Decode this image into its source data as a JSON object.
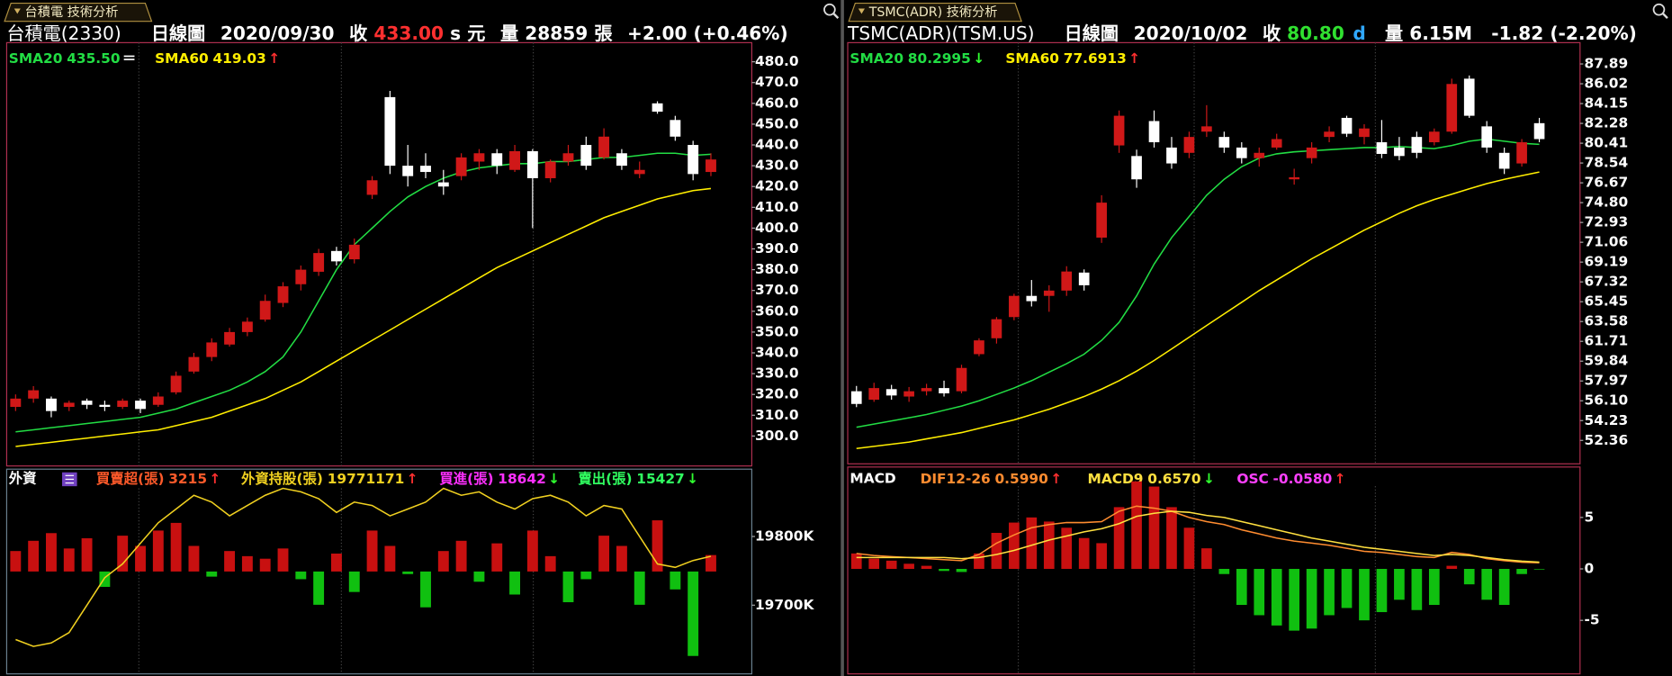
{
  "chart_data": [
    {
      "tab": "台積電 技術分析",
      "header": [
        {
          "text": "台積電(2330)",
          "color": "#ffffff"
        },
        {
          "text": "日線圖",
          "color": "#ffffff"
        },
        {
          "text": "2020/09/30",
          "color": "#ffffff"
        },
        {
          "text": "收",
          "color": "#ffffff"
        },
        {
          "text": "433.00",
          "color": "#ff3030"
        },
        {
          "text": "s",
          "color": "#ffffff"
        },
        {
          "text": "元",
          "color": "#ffffff"
        },
        {
          "text": "量",
          "color": "#ffffff"
        },
        {
          "text": "28859",
          "color": "#ffffff"
        },
        {
          "text": "張",
          "color": "#ffffff"
        },
        {
          "text": "+2.00 (+0.46%)",
          "color": "#ffffff"
        }
      ],
      "main": {
        "type": "candlestick",
        "ylim": [
          285.6,
          489.2
        ],
        "up_color": "#d01818",
        "down_color": "#ffffff",
        "yticks": [
          {
            "value": 480,
            "label": "480.0"
          },
          {
            "value": 470,
            "label": "470.0"
          },
          {
            "value": 460,
            "label": "460.0"
          },
          {
            "value": 450,
            "label": "450.0"
          },
          {
            "value": 440,
            "label": "440.0"
          },
          {
            "value": 430,
            "label": "430.0"
          },
          {
            "value": 420,
            "label": "420.0"
          },
          {
            "value": 410,
            "label": "410.0"
          },
          {
            "value": 400,
            "label": "400.0"
          },
          {
            "value": 390,
            "label": "390.0"
          },
          {
            "value": 380,
            "label": "380.0"
          },
          {
            "value": 370,
            "label": "370.0"
          },
          {
            "value": 360,
            "label": "360.0"
          },
          {
            "value": 350,
            "label": "350.0"
          },
          {
            "value": 340,
            "label": "340.0"
          },
          {
            "value": 330,
            "label": "330.0"
          },
          {
            "value": 320,
            "label": "320.0"
          },
          {
            "value": 310,
            "label": "310.0"
          },
          {
            "value": 300,
            "label": "300.0"
          }
        ],
        "open": [
          314,
          318,
          318,
          314,
          317,
          315,
          314,
          317,
          315,
          321,
          331,
          338,
          344,
          350,
          356,
          364,
          373,
          379,
          389,
          385,
          416,
          463,
          430,
          430,
          422,
          425,
          432,
          436,
          428,
          437,
          424,
          432,
          440,
          434,
          436,
          426,
          460,
          452,
          440,
          427
        ],
        "high": [
          320,
          324,
          319,
          317,
          318,
          317,
          318,
          318,
          321,
          331,
          340,
          347,
          352,
          357,
          368,
          374,
          382,
          390,
          391,
          395,
          425,
          466,
          440,
          436,
          428,
          436,
          438,
          438,
          440,
          438,
          433,
          440,
          444,
          448,
          438,
          432,
          461,
          454,
          442,
          436
        ],
        "low": [
          312,
          316,
          309,
          312,
          313,
          312,
          313,
          311,
          314,
          320,
          330,
          336,
          343,
          348,
          355,
          362,
          370,
          377,
          382,
          383,
          414,
          426,
          420,
          424,
          416,
          423,
          428,
          426,
          427,
          400,
          422,
          430,
          428,
          433,
          428,
          424,
          455,
          442,
          423,
          425
        ],
        "close": [
          318,
          322,
          312,
          316,
          315,
          314,
          317,
          313,
          319,
          329,
          338,
          345,
          350,
          355,
          365,
          372,
          380,
          388,
          384,
          392,
          423,
          430,
          425,
          427,
          420,
          434,
          436,
          430,
          437,
          424,
          432,
          436,
          430,
          444,
          430,
          428,
          456,
          444,
          426,
          433
        ],
        "series": [
          {
            "name": "SMA20",
            "last": "435.50",
            "arrow": "＝",
            "color": "#22dd44",
            "values": [
              302,
              303,
              304,
              305,
              306,
              307,
              308,
              309,
              311,
              313,
              316,
              319,
              322,
              326,
              331,
              338,
              350,
              365,
              380,
              392,
              400,
              408,
              415,
              420,
              424,
              427,
              429,
              430,
              431,
              431,
              432,
              432,
              433,
              434,
              434,
              435,
              436,
              436,
              435,
              435.5
            ]
          },
          {
            "name": "SMA60",
            "last": "419.03",
            "arrow": "↑",
            "color": "#ffee00",
            "values": [
              295,
              296,
              297,
              298,
              299,
              300,
              301,
              302,
              303,
              305,
              307,
              309,
              312,
              315,
              318,
              322,
              326,
              331,
              336,
              341,
              346,
              351,
              356,
              361,
              366,
              371,
              376,
              381,
              385,
              389,
              393,
              397,
              401,
              405,
              408,
              411,
              414,
              416,
              418,
              419.03
            ]
          }
        ]
      },
      "sub": {
        "type": "bar-line",
        "title": "外資",
        "ylim": [
          19600000,
          19898000
        ],
        "yticks": [
          {
            "value": 19800000,
            "label": "19800K"
          },
          {
            "value": 19700000,
            "label": "19700K"
          }
        ],
        "series": [
          {
            "name": "買賣超(張)",
            "last": "3215",
            "arrow": "↑",
            "color": "#ff5a2a",
            "kind": "bar",
            "up_color": "#c81010",
            "down_color": "#10c010",
            "ylim": [
              -20000,
              20000
            ],
            "values": [
              4000,
              6000,
              7500,
              4500,
              6500,
              -3000,
              7000,
              5000,
              8000,
              9500,
              5000,
              -1000,
              4000,
              3000,
              2500,
              4500,
              -1500,
              -6500,
              3500,
              -4000,
              8000,
              5000,
              -500,
              -7000,
              4000,
              6000,
              -2000,
              5500,
              -4500,
              8000,
              3000,
              -6000,
              -1500,
              7000,
              5000,
              -6500,
              10000,
              -3500,
              -16500,
              3215
            ]
          },
          {
            "name": "外資持股(張)",
            "last": "19771171",
            "arrow": "↑",
            "color": "#f0d020",
            "kind": "line",
            "values": [
              19650000,
              19640000,
              19645000,
              19660000,
              19700000,
              19740000,
              19760000,
              19790000,
              19820000,
              19840000,
              19860000,
              19850000,
              19830000,
              19845000,
              19860000,
              19870000,
              19865000,
              19855000,
              19835000,
              19850000,
              19845000,
              19830000,
              19840000,
              19850000,
              19870000,
              19860000,
              19865000,
              19850000,
              19840000,
              19855000,
              19860000,
              19850000,
              19830000,
              19845000,
              19840000,
              19800000,
              19760000,
              19755000,
              19765000,
              19771171
            ]
          },
          {
            "name": "買進(張)",
            "last": "18642",
            "arrow": "↓",
            "color": "#ff30ff"
          },
          {
            "name": "賣出(張)",
            "last": "15427",
            "arrow": "↓",
            "color": "#30ff60"
          }
        ]
      }
    },
    {
      "tab": "TSMC(ADR) 技術分析",
      "header": [
        {
          "text": "TSMC(ADR)(TSM.US)",
          "color": "#ffffff"
        },
        {
          "text": "日線圖",
          "color": "#ffffff"
        },
        {
          "text": "2020/10/02",
          "color": "#ffffff"
        },
        {
          "text": "收",
          "color": "#ffffff"
        },
        {
          "text": "80.80",
          "color": "#30e030"
        },
        {
          "text": "d",
          "color": "#30a8ff"
        },
        {
          "text": "量",
          "color": "#ffffff"
        },
        {
          "text": "6.15M",
          "color": "#ffffff"
        },
        {
          "text": "-1.82 (-2.20%)",
          "color": "#ffffff"
        }
      ],
      "main": {
        "type": "candlestick",
        "ylim": [
          50.15,
          89.9
        ],
        "up_color": "#d01818",
        "down_color": "#ffffff",
        "yticks": [
          87.89,
          86.02,
          84.15,
          82.28,
          80.41,
          78.54,
          76.67,
          {
            "value": 74.8,
            "label": "74.80"
          },
          72.93,
          71.06,
          69.19,
          67.32,
          65.45,
          63.58,
          61.71,
          59.84,
          57.97,
          {
            "value": 56.1,
            "label": "56.10"
          },
          54.23,
          52.36
        ],
        "open": [
          57,
          56.2,
          57.2,
          56.5,
          57,
          57.3,
          57,
          60.5,
          62,
          64,
          66,
          66,
          66.5,
          68.2,
          71.5,
          80.2,
          79.2,
          82.5,
          80,
          79.5,
          81.5,
          81,
          80,
          79,
          80,
          77,
          79,
          81,
          82.8,
          81,
          80.5,
          80,
          81,
          80.5,
          81.5,
          86.5,
          82,
          79.5,
          78.5,
          82.3
        ],
        "high": [
          57.5,
          57.8,
          57.6,
          57.4,
          57.7,
          58,
          59.5,
          62,
          64,
          66.2,
          67.5,
          67,
          68.8,
          68.5,
          75.5,
          83.5,
          79.8,
          83.5,
          81,
          81.5,
          84,
          81.5,
          80.5,
          80,
          81.3,
          78,
          80.5,
          82,
          83,
          82.2,
          82.6,
          81,
          81.5,
          81.8,
          86.5,
          86.8,
          82.5,
          80,
          80.8,
          82.8
        ],
        "low": [
          55.5,
          56,
          56.2,
          56,
          56.6,
          56.5,
          56.8,
          60.3,
          61.5,
          63.7,
          65,
          64.5,
          66,
          66.5,
          71,
          79.5,
          76.2,
          80,
          78,
          79,
          81,
          79.5,
          78.5,
          78.2,
          79.8,
          76.5,
          78.5,
          80.5,
          81,
          80.3,
          79,
          78.8,
          79,
          80.2,
          81.3,
          82.8,
          79.5,
          77.5,
          78.2,
          80.5
        ],
        "close": [
          55.8,
          57.3,
          56.6,
          57,
          57.3,
          56.8,
          59.2,
          61.8,
          63.8,
          66,
          65.5,
          66.5,
          68.3,
          67,
          74.8,
          83,
          77,
          80.5,
          78.5,
          81,
          82,
          80,
          79,
          79.5,
          80.8,
          77.2,
          80,
          81.5,
          81.3,
          81.8,
          79.4,
          79.2,
          79.5,
          81.5,
          86,
          83,
          80,
          78,
          80.5,
          80.8
        ],
        "series": [
          {
            "name": "SMA20",
            "last": "80.2995",
            "arrow": "↓",
            "color": "#22dd44",
            "values": [
              53.6,
              53.9,
              54.2,
              54.5,
              54.8,
              55.2,
              55.6,
              56.1,
              56.7,
              57.3,
              58,
              58.8,
              59.6,
              60.5,
              61.8,
              63.5,
              66,
              69,
              71.5,
              73.5,
              75.5,
              77,
              78.2,
              79,
              79.4,
              79.6,
              79.7,
              79.8,
              79.9,
              80,
              80,
              80.1,
              80,
              79.9,
              80.2,
              80.6,
              80.8,
              80.6,
              80.4,
              80.2995
            ]
          },
          {
            "name": "SMA60",
            "last": "77.6913",
            "arrow": "↑",
            "color": "#ffee00",
            "values": [
              51.6,
              51.8,
              52,
              52.2,
              52.5,
              52.8,
              53.1,
              53.5,
              53.9,
              54.3,
              54.8,
              55.3,
              55.9,
              56.5,
              57.2,
              58,
              58.9,
              59.9,
              61,
              62.1,
              63.2,
              64.3,
              65.4,
              66.5,
              67.5,
              68.5,
              69.5,
              70.4,
              71.3,
              72.2,
              73,
              73.8,
              74.5,
              75.1,
              75.6,
              76.1,
              76.6,
              77,
              77.35,
              77.6913
            ]
          }
        ]
      },
      "sub": {
        "type": "bar-line",
        "title": "MACD",
        "ylim": [
          -10.2,
          9.9
        ],
        "yticks": [
          5,
          0,
          -5
        ],
        "series": [
          {
            "name": "DIF12-26",
            "last": "0.5990",
            "arrow": "↑",
            "color": "#ff8c30",
            "kind": "line",
            "values": [
              1.5,
              1.3,
              1.2,
              1.1,
              1.0,
              0.9,
              0.8,
              1.4,
              2.5,
              3.3,
              4,
              4.3,
              4.5,
              4.5,
              4.6,
              5.6,
              6.1,
              5.9,
              5.6,
              5.0,
              4.6,
              4.3,
              3.8,
              3.4,
              3,
              2.7,
              2.5,
              2.3,
              2.0,
              1.7,
              1.6,
              1.4,
              1.2,
              1.1,
              1.6,
              1.4,
              1.0,
              0.8,
              0.65,
              0.599
            ]
          },
          {
            "name": "MACD9",
            "last": "0.6570",
            "arrow": "↓",
            "color": "#ffe040",
            "kind": "line",
            "values": [
              1.1,
              1.1,
              1.1,
              1.1,
              1.1,
              1.1,
              1.0,
              1.1,
              1.4,
              1.8,
              2.3,
              2.8,
              3.2,
              3.6,
              3.9,
              4.4,
              5.1,
              5.4,
              5.6,
              5.5,
              5.2,
              5,
              4.6,
              4.2,
              3.8,
              3.4,
              3,
              2.7,
              2.4,
              2.1,
              1.9,
              1.7,
              1.5,
              1.3,
              1.4,
              1.3,
              1.1,
              0.9,
              0.75,
              0.657
            ]
          },
          {
            "name": "OSC",
            "last": "-0.0580",
            "arrow": "↑",
            "color": "#ff40ff",
            "kind": "bar",
            "up_color": "#c81010",
            "down_color": "#10c010",
            "values": [
              1.5,
              1,
              0.8,
              0.5,
              0.3,
              -0.2,
              -0.3,
              1.5,
              3.5,
              4.5,
              5,
              4.6,
              4,
              3,
              2.5,
              6,
              8.5,
              8,
              6,
              4,
              2,
              -0.5,
              -3.5,
              -4.5,
              -5.5,
              -6,
              -5.8,
              -4.5,
              -3.8,
              -5,
              -4.2,
              -3,
              -4,
              -3.5,
              0.3,
              -1.5,
              -3,
              -3.5,
              -0.5,
              -0.058
            ]
          }
        ]
      }
    }
  ]
}
